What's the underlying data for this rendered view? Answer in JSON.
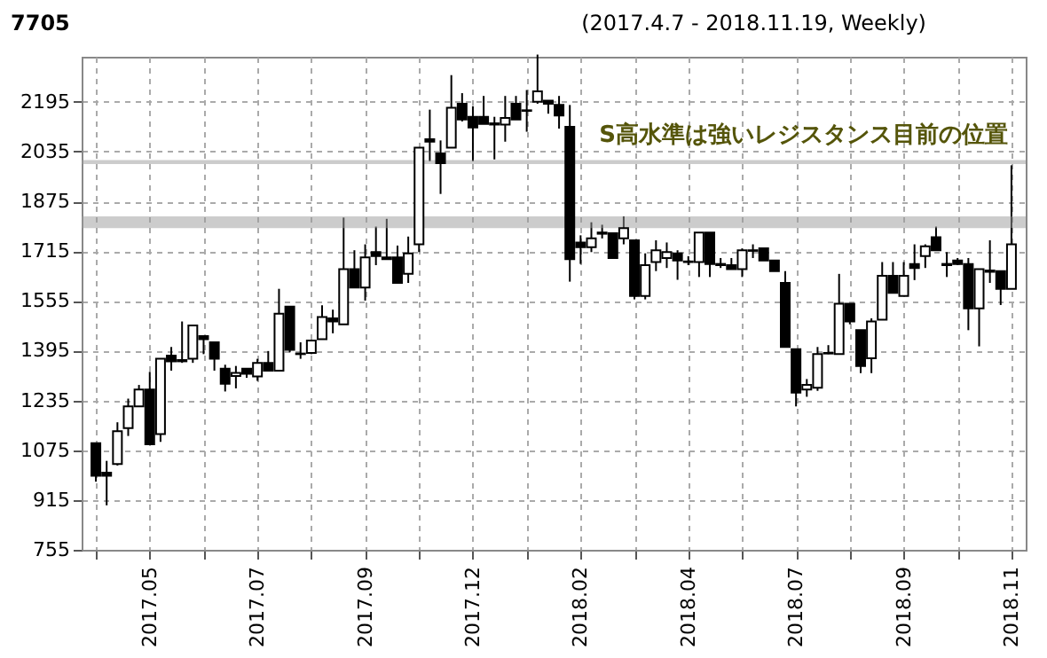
{
  "chart_data": {
    "type": "candlestick",
    "title": "7705",
    "subtitle": "(2017.4.7 - 2018.11.19, Weekly)",
    "annotations": [
      "S高水準は強いレジスタンス目前の位置"
    ],
    "categories": [
      null,
      null,
      null,
      null,
      null,
      "2017.05",
      null,
      null,
      null,
      null,
      null,
      null,
      null,
      null,
      null,
      "2017.07",
      null,
      null,
      null,
      null,
      null,
      null,
      null,
      null,
      null,
      "2017.09",
      null,
      null,
      null,
      null,
      null,
      null,
      null,
      null,
      null,
      "2017.12",
      null,
      null,
      null,
      null,
      null,
      null,
      null,
      null,
      null,
      "2018.02",
      null,
      null,
      null,
      null,
      null,
      null,
      null,
      null,
      null,
      "2018.04",
      null,
      null,
      null,
      null,
      null,
      null,
      null,
      null,
      null,
      "2018.07",
      null,
      null,
      null,
      null,
      null,
      null,
      null,
      null,
      null,
      "2018.09",
      null,
      null,
      null,
      null,
      null,
      null,
      null,
      null,
      null,
      "2018.11"
    ],
    "ohlc": [
      [
        1098,
        1098,
        974,
        993
      ],
      [
        1003,
        1041,
        898,
        993
      ],
      [
        1031,
        1165,
        1026,
        1136
      ],
      [
        1146,
        1241,
        1121,
        1216
      ],
      [
        1216,
        1285,
        1216,
        1270
      ],
      [
        1270,
        1327,
        1094,
        1094
      ],
      [
        1127,
        1369,
        1102,
        1369
      ],
      [
        1379,
        1407,
        1331,
        1361
      ],
      [
        1365,
        1489,
        1356,
        1361
      ],
      [
        1369,
        1476,
        1356,
        1476
      ],
      [
        1442,
        1442,
        1384,
        1432
      ],
      [
        1422,
        1422,
        1331,
        1369
      ],
      [
        1337,
        1350,
        1264,
        1289
      ],
      [
        1314,
        1346,
        1274,
        1324
      ],
      [
        1337,
        1337,
        1308,
        1321
      ],
      [
        1312,
        1369,
        1298,
        1356
      ],
      [
        1356,
        1394,
        1331,
        1331
      ],
      [
        1331,
        1594,
        1331,
        1514
      ],
      [
        1537,
        1537,
        1390,
        1398
      ],
      [
        1384,
        1422,
        1369,
        1386
      ],
      [
        1388,
        1428,
        1384,
        1428
      ],
      [
        1432,
        1541,
        1432,
        1503
      ],
      [
        1499,
        1527,
        1451,
        1489
      ],
      [
        1480,
        1823,
        1480,
        1657
      ],
      [
        1657,
        1718,
        1598,
        1598
      ],
      [
        1598,
        1737,
        1556,
        1695
      ],
      [
        1712,
        1794,
        1670,
        1699
      ],
      [
        1695,
        1819,
        1689,
        1689
      ],
      [
        1695,
        1733,
        1613,
        1613
      ],
      [
        1642,
        1762,
        1613,
        1708
      ],
      [
        1737,
        2048,
        1712,
        2048
      ],
      [
        2075,
        2170,
        2004,
        2067
      ],
      [
        2029,
        2071,
        1899,
        1998
      ],
      [
        2048,
        2281,
        2048,
        2176
      ],
      [
        2189,
        2223,
        2132,
        2138
      ],
      [
        2147,
        2181,
        2004,
        2113
      ],
      [
        2147,
        2214,
        2124,
        2124
      ],
      [
        2126,
        2147,
        2010,
        2122
      ],
      [
        2122,
        2214,
        2067,
        2143
      ],
      [
        2189,
        2214,
        2138,
        2138
      ],
      [
        2168,
        2233,
        2099,
        2166
      ],
      [
        2195,
        2347,
        2189,
        2229
      ],
      [
        2199,
        2199,
        2157,
        2189
      ],
      [
        2185,
        2214,
        2109,
        2151
      ],
      [
        2115,
        2185,
        1617,
        1689
      ],
      [
        1743,
        1766,
        1674,
        1728
      ],
      [
        1728,
        1808,
        1712,
        1756
      ],
      [
        1775,
        1800,
        1756,
        1771
      ],
      [
        1773,
        1773,
        1693,
        1693
      ],
      [
        1756,
        1827,
        1737,
        1789
      ],
      [
        1750,
        1750,
        1560,
        1571
      ],
      [
        1571,
        1708,
        1560,
        1670
      ],
      [
        1680,
        1750,
        1651,
        1718
      ],
      [
        1693,
        1743,
        1661,
        1712
      ],
      [
        1708,
        1718,
        1623,
        1685
      ],
      [
        1682,
        1699,
        1670,
        1680
      ],
      [
        1680,
        1775,
        1632,
        1775
      ],
      [
        1775,
        1775,
        1632,
        1674
      ],
      [
        1674,
        1693,
        1661,
        1670
      ],
      [
        1670,
        1693,
        1657,
        1657
      ],
      [
        1657,
        1724,
        1632,
        1718
      ],
      [
        1718,
        1737,
        1693,
        1716
      ],
      [
        1724,
        1727,
        1685,
        1685
      ],
      [
        1685,
        1685,
        1651,
        1651
      ],
      [
        1613,
        1651,
        1407,
        1407
      ],
      [
        1400,
        1400,
        1216,
        1260
      ],
      [
        1270,
        1304,
        1247,
        1285
      ],
      [
        1276,
        1407,
        1266,
        1384
      ],
      [
        1386,
        1413,
        1384,
        1388
      ],
      [
        1384,
        1642,
        1384,
        1546
      ],
      [
        1546,
        1546,
        1480,
        1489
      ],
      [
        1461,
        1461,
        1323,
        1346
      ],
      [
        1371,
        1499,
        1323,
        1489
      ],
      [
        1495,
        1680,
        1495,
        1636
      ],
      [
        1636,
        1680,
        1581,
        1581
      ],
      [
        1571,
        1680,
        1571,
        1636
      ],
      [
        1674,
        1737,
        1622,
        1661
      ],
      [
        1699,
        1737,
        1661,
        1731
      ],
      [
        1760,
        1794,
        1718,
        1718
      ],
      [
        1674,
        1712,
        1632,
        1670
      ],
      [
        1685,
        1693,
        1670,
        1674
      ],
      [
        1674,
        1693,
        1461,
        1531
      ],
      [
        1531,
        1657,
        1409,
        1657
      ],
      [
        1653,
        1750,
        1613,
        1649
      ],
      [
        1651,
        1651,
        1542,
        1594
      ],
      [
        1594,
        1991,
        1594,
        1737
      ]
    ],
    "ylim": [
      755,
      2340
    ],
    "yticks": [
      755,
      915,
      1075,
      1235,
      1395,
      1555,
      1715,
      1875,
      2035,
      2195
    ],
    "grid": true,
    "bands": [
      {
        "axis": "y",
        "from": 1995,
        "to": 2008,
        "color": "#999999"
      },
      {
        "axis": "y",
        "from": 1789,
        "to": 1827,
        "color": "#999999"
      }
    ]
  }
}
